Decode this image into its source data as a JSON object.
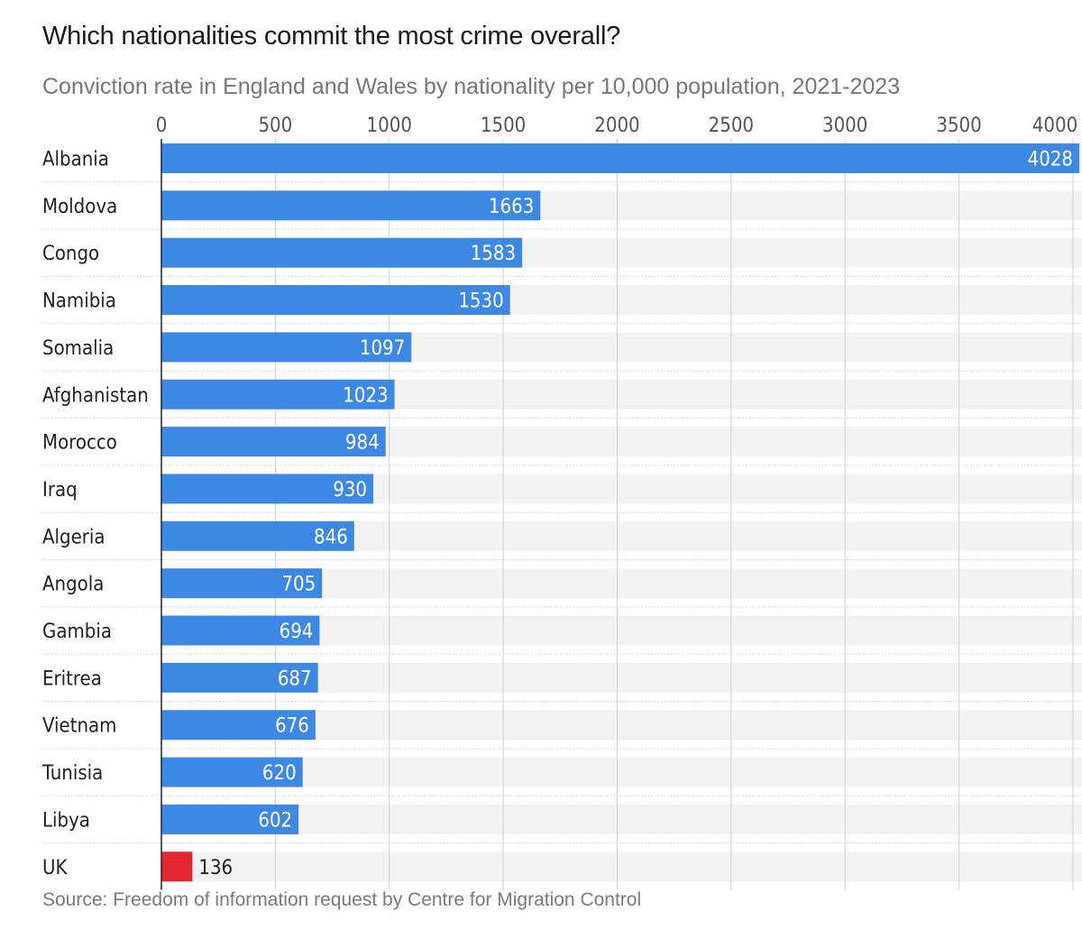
{
  "header": {
    "title": "Which nationalities commit the most crime overall?",
    "subtitle": "Conviction rate in England and Wales by nationality per 10,000 population, 2021-2023"
  },
  "footer": {
    "source": "Source: Freedom of information request by Centre for Migration Control"
  },
  "colors": {
    "bar": "#3d88e3",
    "highlight_bar": "#e0282e",
    "row_background": "#f2f2f2",
    "grid": "#d0d0d0",
    "bar_label": "#ffffff",
    "outside_label": "#222222",
    "category_label": "#222222",
    "tick_label": "#555555"
  },
  "chart_data": {
    "type": "bar",
    "orientation": "horizontal",
    "title": "Which nationalities commit the most crime overall?",
    "subtitle": "Conviction rate in England and Wales by nationality per 10,000 population, 2021-2023",
    "categories": [
      "Albania",
      "Moldova",
      "Congo",
      "Namibia",
      "Somalia",
      "Afghanistan",
      "Morocco",
      "Iraq",
      "Algeria",
      "Angola",
      "Gambia",
      "Eritrea",
      "Vietnam",
      "Tunisia",
      "Libya",
      "UK"
    ],
    "values": [
      4028,
      1663,
      1583,
      1530,
      1097,
      1023,
      984,
      930,
      846,
      705,
      694,
      687,
      676,
      620,
      602,
      136
    ],
    "highlight": [
      "UK"
    ],
    "xlim": [
      0,
      4028
    ],
    "xticks": [
      0,
      500,
      1000,
      1500,
      2000,
      2500,
      3000,
      3500,
      4000
    ],
    "xlabel": "",
    "ylabel": "",
    "grid": true,
    "axis_position": "top",
    "source": "Source: Freedom of information request by Centre for Migration Control"
  }
}
